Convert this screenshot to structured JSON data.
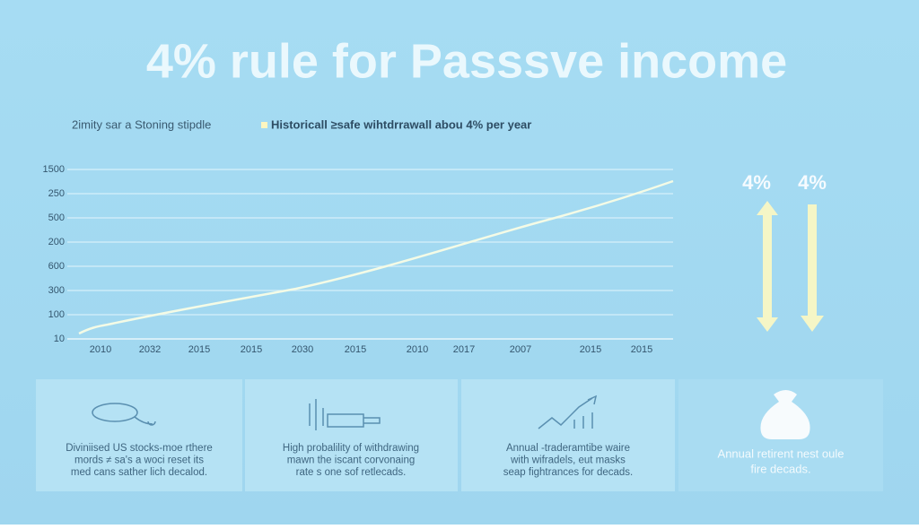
{
  "title": "4% rule for Passsve income",
  "subtitle": {
    "left": "2imity sar a Stoning stipdle",
    "right": "Historicall ≥safe wihtdrrawall abou 4% per year"
  },
  "chart": {
    "y_labels": [
      "1500",
      "250",
      "500",
      "200",
      "600",
      "300",
      "100",
      "10"
    ],
    "x_labels": [
      "2010",
      "2032",
      "2015",
      "2015",
      "2030",
      "2015",
      "2010",
      "2017",
      "2007",
      "2015",
      "2015"
    ]
  },
  "arrows": {
    "left_label": "4%",
    "right_label": "4%"
  },
  "cards": [
    {
      "lines": [
        "Diviniised US stocks-moe rthere",
        "mords ≠ sa's a woci reset its",
        "med cans sather lich decalod."
      ]
    },
    {
      "lines": [
        "High probalility of withdrawing",
        "mawn the iscant corvonaing",
        "rate s one sof retlecads."
      ]
    },
    {
      "lines": [
        "Annual -traderamtibe waire",
        "with wifradels, eut masks",
        "seap fightrances for decads."
      ]
    },
    {
      "lines": [
        "Annual retirent nest oule",
        "fire decads."
      ]
    }
  ]
}
